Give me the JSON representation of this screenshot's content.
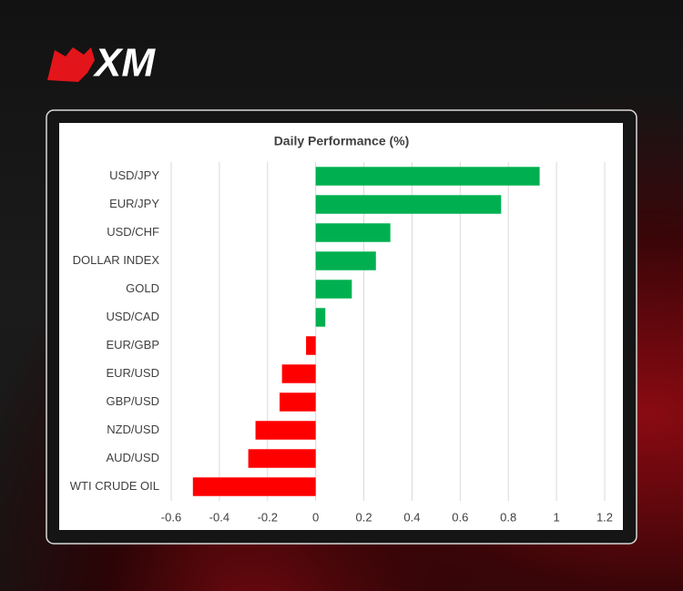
{
  "logo": "XM",
  "chart_data": {
    "type": "hbar",
    "title": "Daily Performance (%)",
    "categories": [
      "USD/JPY",
      "EUR/JPY",
      "USD/CHF",
      "DOLLAR INDEX",
      "GOLD",
      "USD/CAD",
      "EUR/GBP",
      "EUR/USD",
      "GBP/USD",
      "NZD/USD",
      "AUD/USD",
      "WTI CRUDE OIL"
    ],
    "values": [
      0.93,
      0.77,
      0.31,
      0.25,
      0.15,
      0.04,
      -0.04,
      -0.14,
      -0.15,
      -0.25,
      -0.28,
      -0.51
    ],
    "color": "#00b050",
    "negative_color": "#ff0000",
    "xlim": [
      -0.6,
      1.2
    ],
    "xticks": [
      -0.6,
      -0.4,
      -0.2,
      0,
      0.2,
      0.4,
      0.6,
      0.8,
      1,
      1.2
    ],
    "grid": true
  }
}
